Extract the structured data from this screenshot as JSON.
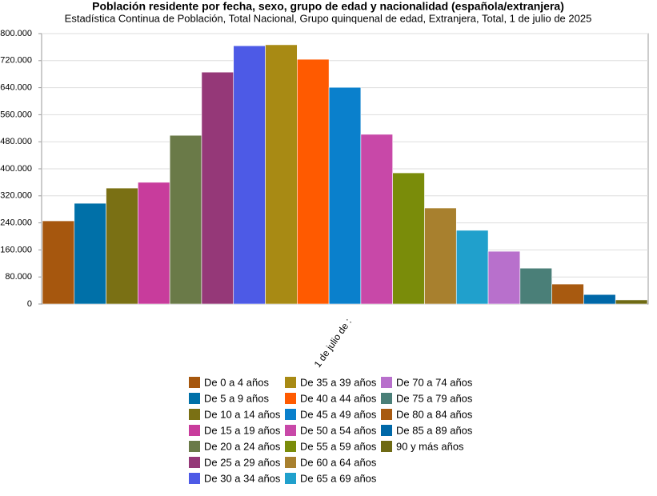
{
  "chart_data": {
    "type": "bar",
    "title": "Población residente por fecha, sexo, grupo de edad y nacionalidad (española/extranjera)",
    "subtitle": "Estadística Continua de Población, Total Nacional, Grupo quinquenal de edad, Extranjera, Total, 1 de julio de 2025",
    "categories": [
      "1 de julio de :"
    ],
    "series": [
      {
        "name": "De 0 a 4 años",
        "color": "#a6570e",
        "values": [
          246000
        ]
      },
      {
        "name": "De 5 a 9 años",
        "color": "#0070a8",
        "values": [
          298000
        ]
      },
      {
        "name": "De 10 a 14 años",
        "color": "#7a7014",
        "values": [
          343000
        ]
      },
      {
        "name": "De 15 a 19 años",
        "color": "#c83c9c",
        "values": [
          360000
        ]
      },
      {
        "name": "De 20 a 24 años",
        "color": "#6a7a48",
        "values": [
          499000
        ]
      },
      {
        "name": "De 25 a 29 años",
        "color": "#953878",
        "values": [
          686000
        ]
      },
      {
        "name": "De 30 a 34 años",
        "color": "#4d5ae6",
        "values": [
          764000
        ]
      },
      {
        "name": "De 35 a 39 años",
        "color": "#a88a14",
        "values": [
          767000
        ]
      },
      {
        "name": "De 40 a 44 años",
        "color": "#ff5a00",
        "values": [
          724000
        ]
      },
      {
        "name": "De 45 a 49 años",
        "color": "#0a80cc",
        "values": [
          641000
        ]
      },
      {
        "name": "De 50 a 54 años",
        "color": "#c848a8",
        "values": [
          502000
        ]
      },
      {
        "name": "De 55 a 59 años",
        "color": "#7a8c0a",
        "values": [
          388000
        ]
      },
      {
        "name": "De 60 a 64 años",
        "color": "#a8802e",
        "values": [
          284000
        ]
      },
      {
        "name": "De 65 a 69 años",
        "color": "#20a0cc",
        "values": [
          218000
        ]
      },
      {
        "name": "De 70 a 74 años",
        "color": "#b870cc",
        "values": [
          156000
        ]
      },
      {
        "name": "De 75 a 79 años",
        "color": "#4a7f78",
        "values": [
          106000
        ]
      },
      {
        "name": "De 80 a 84 años",
        "color": "#a85a10",
        "values": [
          59000
        ]
      },
      {
        "name": "De 85 a 89 años",
        "color": "#0068a8",
        "values": [
          28000
        ]
      },
      {
        "name": "90 y más años",
        "color": "#6e6a14",
        "values": [
          12000
        ]
      }
    ],
    "ylim": [
      0,
      800000
    ],
    "yticks": [
      {
        "value": 0,
        "label": "0"
      },
      {
        "value": 80000,
        "label": "80.000"
      },
      {
        "value": 160000,
        "label": "160.000"
      },
      {
        "value": 240000,
        "label": "240.000"
      },
      {
        "value": 320000,
        "label": "320.000"
      },
      {
        "value": 400000,
        "label": "400.000"
      },
      {
        "value": 480000,
        "label": "480.000"
      },
      {
        "value": 560000,
        "label": "560.000"
      },
      {
        "value": 640000,
        "label": "640.000"
      },
      {
        "value": 720000,
        "label": "720.000"
      },
      {
        "value": 800000,
        "label": "800.000"
      }
    ],
    "grid": true
  }
}
